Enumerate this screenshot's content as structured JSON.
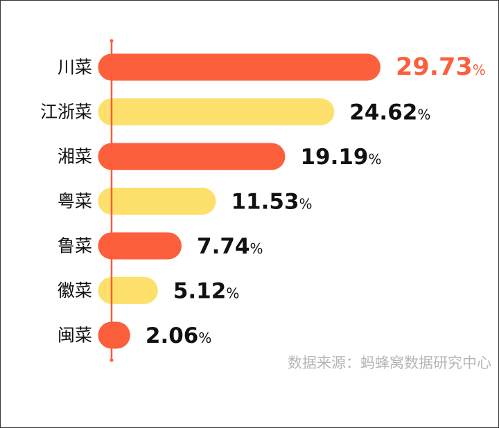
{
  "chart_data": {
    "type": "bar",
    "orientation": "horizontal",
    "categories": [
      "川菜",
      "江浙菜",
      "湘菜",
      "粤菜",
      "鲁菜",
      "徽菜",
      "闽菜"
    ],
    "values": [
      29.73,
      24.62,
      19.19,
      11.53,
      7.74,
      5.12,
      2.06
    ],
    "value_labels": [
      "29.73",
      "24.62",
      "19.19",
      "11.53",
      "7.74",
      "5.12",
      "2.06"
    ],
    "value_suffix": "%",
    "xlim": [
      0,
      29.73
    ],
    "grid": false,
    "legend": "none"
  },
  "source": "数据来源：蚂蜂窝数据研究中心",
  "colors": {
    "bar_orange": "#fc5f3c",
    "bar_yellow": "#fde06c",
    "axis": "#ff5b38",
    "highlight_label": "#fc5f3c",
    "label": "#111111",
    "source": "#b5b5b5"
  }
}
